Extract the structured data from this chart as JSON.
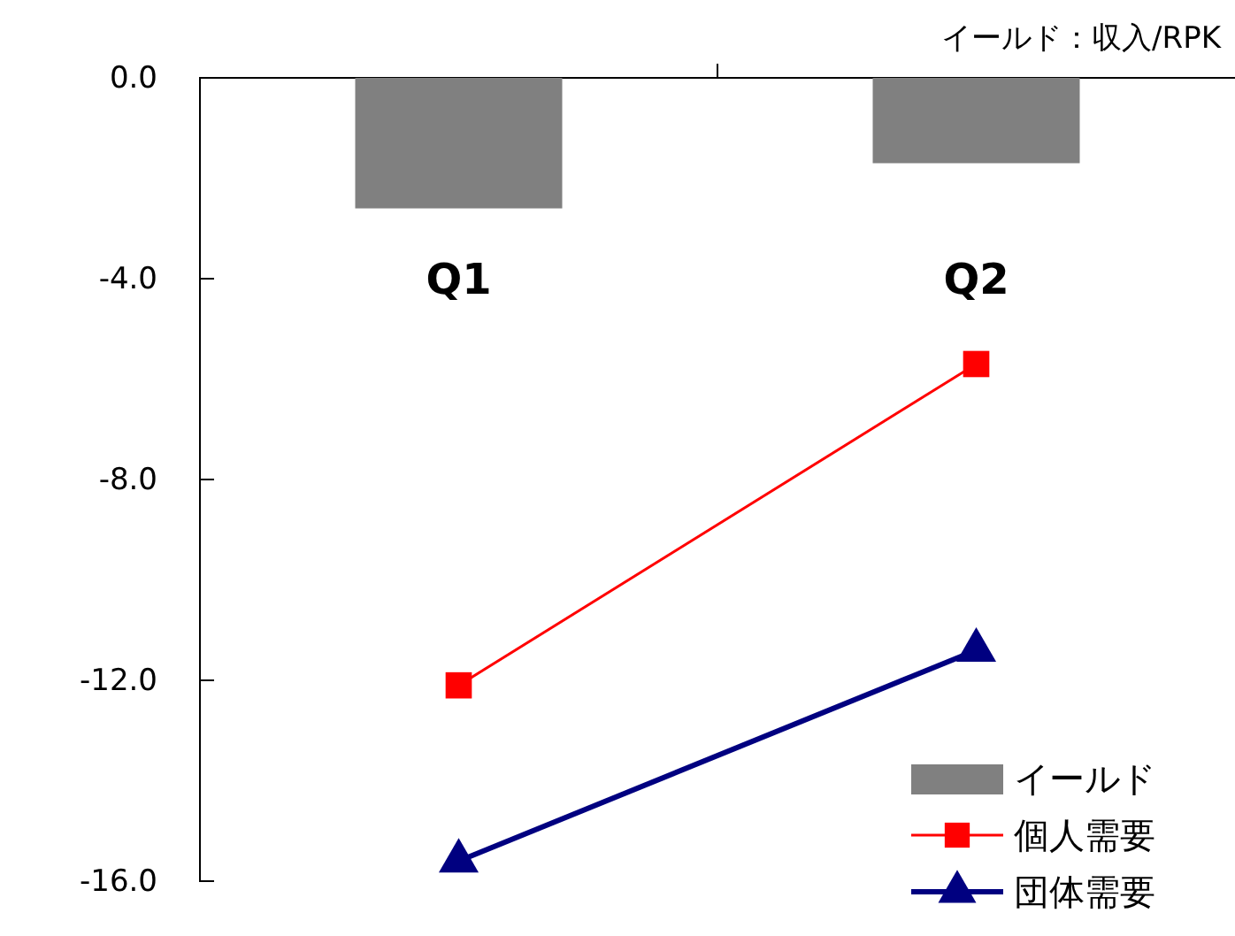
{
  "chart_data": {
    "type": "bar",
    "categories": [
      "Q1",
      "Q2"
    ],
    "series": [
      {
        "name": "イールド",
        "color": "#808080",
        "values": [
          -2.6,
          -1.7
        ]
      },
      {
        "name": "個人需要",
        "type": "line",
        "color": "#ff0000",
        "marker": "square",
        "values": [
          -12.1,
          -5.7
        ]
      },
      {
        "name": "団体需要",
        "type": "line",
        "color": "#000080",
        "marker": "triangle",
        "values": [
          -15.6,
          -11.4
        ]
      }
    ],
    "ylim": [
      -16,
      0.0
    ],
    "yticks": [
      {
        "value": 0,
        "label": "0.0"
      },
      {
        "value": -4,
        "label": "-4.0"
      },
      {
        "value": -8,
        "label": "-8.0"
      },
      {
        "value": -12,
        "label": "-12.0"
      },
      {
        "value": -16,
        "label": "-16.0"
      }
    ],
    "annotations": [
      "イールド：収入/RPK"
    ],
    "grid": false,
    "legend": "bottom right"
  }
}
